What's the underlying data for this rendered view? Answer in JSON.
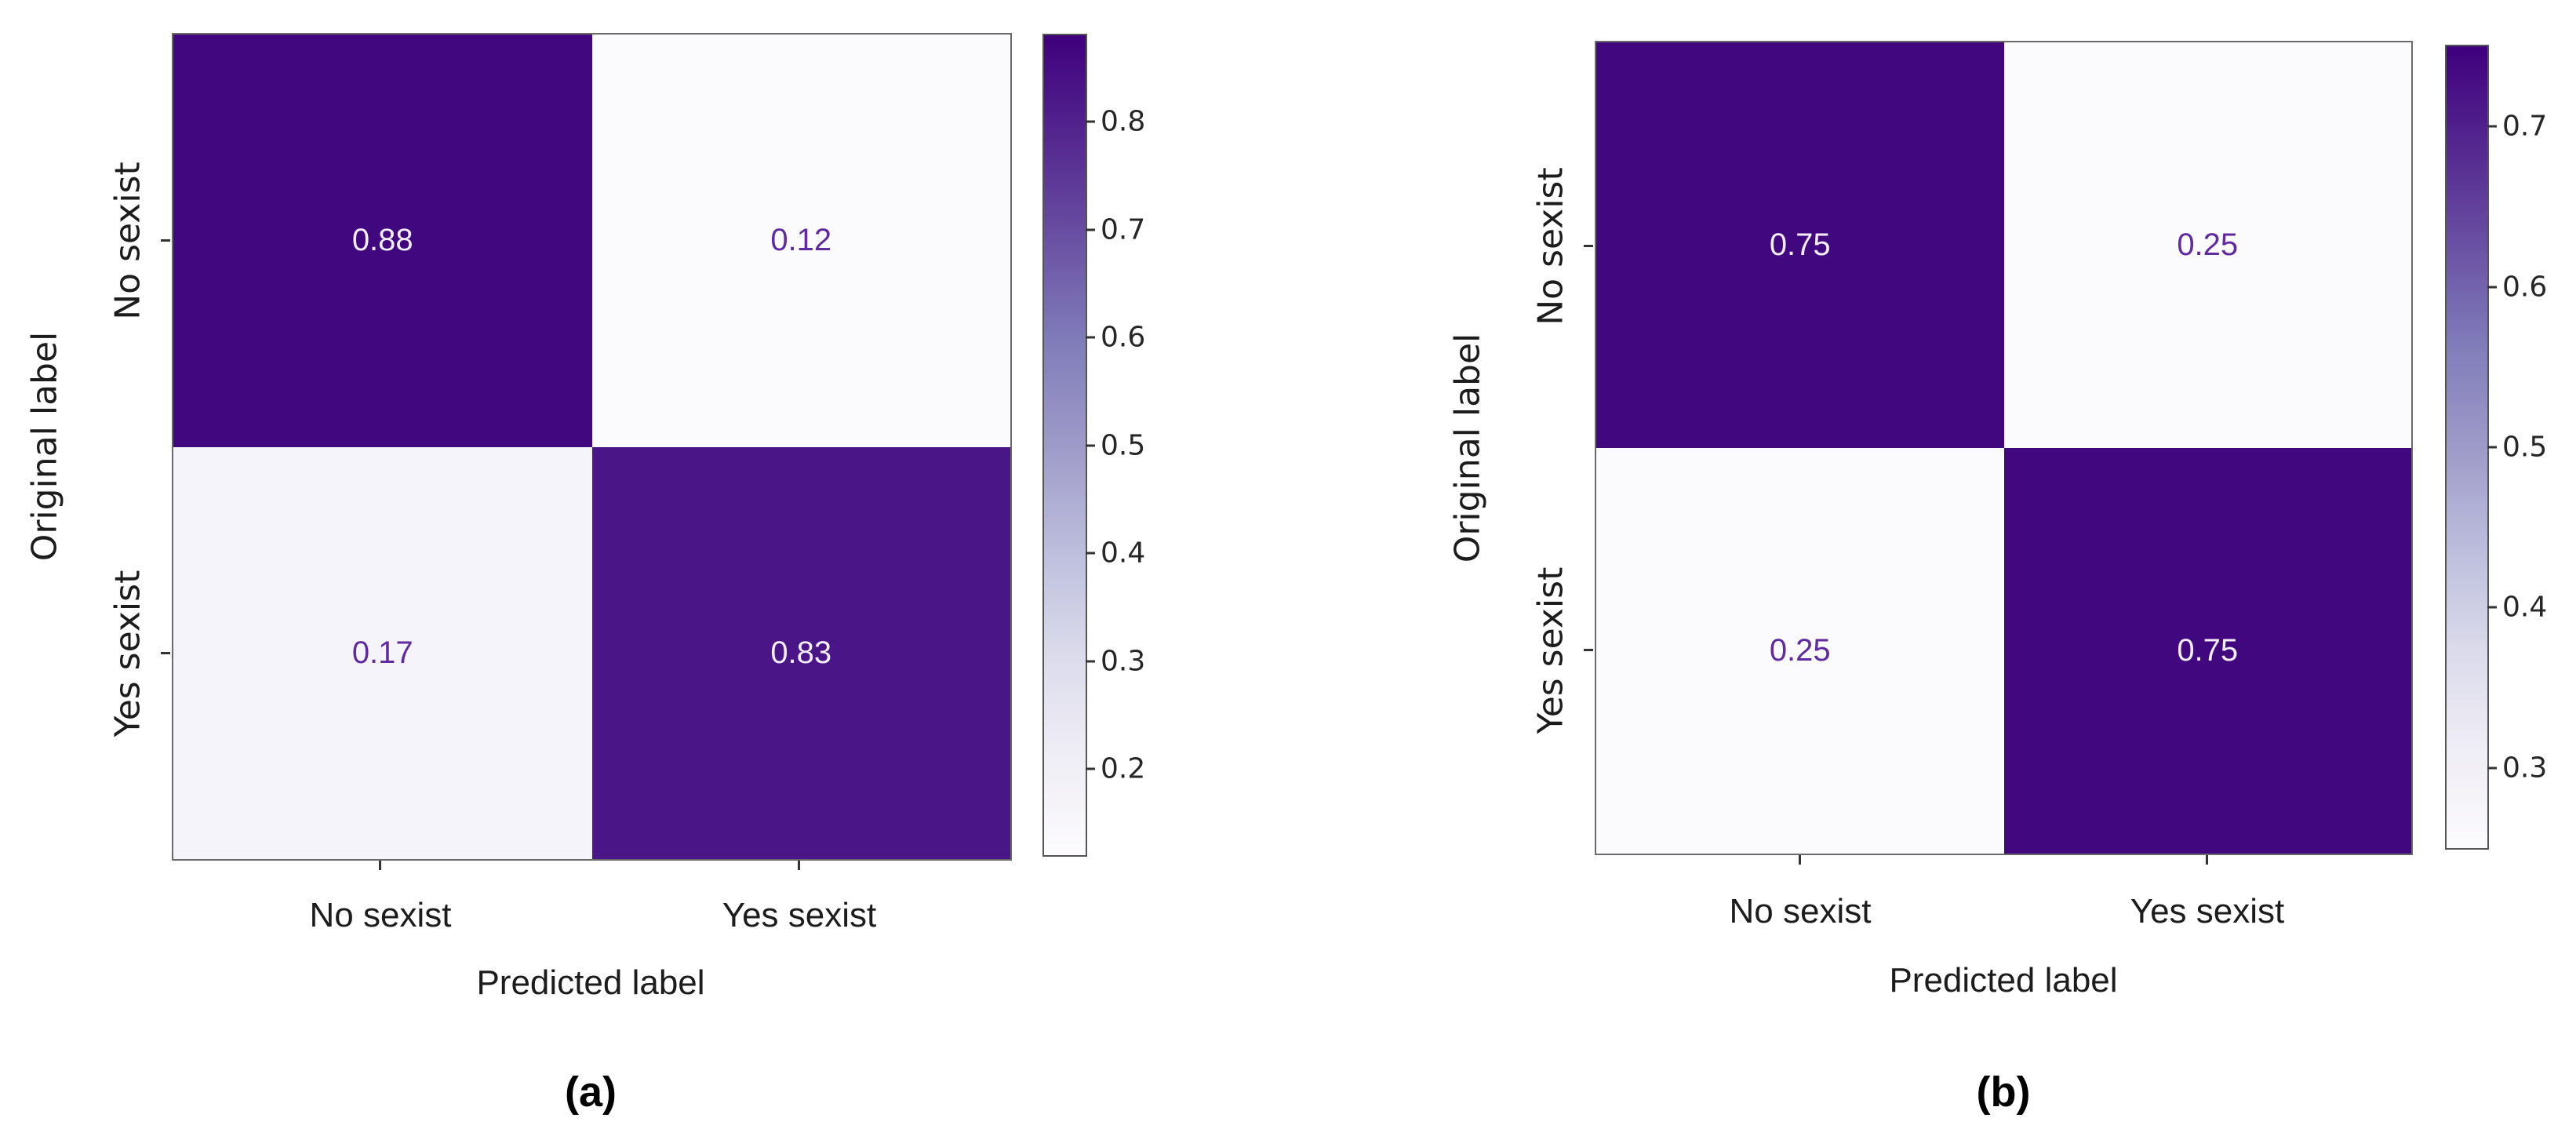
{
  "colors": {
    "colormap_name": "Purples",
    "colormap_stops_dark_to_light": [
      "#3f007d",
      "#54278f",
      "#6a51a3",
      "#807dba",
      "#9e9ac8",
      "#bcbddc",
      "#dadaeb",
      "#efedf5",
      "#fcfbfd"
    ],
    "annotation_on_dark": "#f2edf8",
    "annotation_on_light": "#5f2b9e",
    "spine": "#6a6a6a",
    "axis_text": "#1c1c1c"
  },
  "chart_data": [
    {
      "type": "heatmap",
      "caption": "(a)",
      "xlabel": "Predicted label",
      "ylabel": "Original label",
      "x_categories": [
        "No sexist",
        "Yes sexist"
      ],
      "y_categories": [
        "No sexist",
        "Yes sexist"
      ],
      "values": [
        [
          0.88,
          0.12
        ],
        [
          0.17,
          0.83
        ]
      ],
      "colormap": "Purples",
      "colorbar_range": [
        0.12,
        0.88
      ],
      "colorbar_ticks": [
        0.8,
        0.7,
        0.6,
        0.5,
        0.4,
        0.3,
        0.2
      ],
      "colorbar_position": "right",
      "grid": false,
      "cells": [
        {
          "value": "0.88",
          "bg": "#41077e",
          "fg": "#f2edf8"
        },
        {
          "value": "0.12",
          "bg": "#fbfafd",
          "fg": "#5f2b9e"
        },
        {
          "value": "0.17",
          "bg": "#f5f4fa",
          "fg": "#5f2b9e"
        },
        {
          "value": "0.83",
          "bg": "#4a1586",
          "fg": "#f2edf8"
        }
      ]
    },
    {
      "type": "heatmap",
      "caption": "(b)",
      "xlabel": "Predicted label",
      "ylabel": "Original label",
      "x_categories": [
        "No sexist",
        "Yes sexist"
      ],
      "y_categories": [
        "No sexist",
        "Yes sexist"
      ],
      "values": [
        [
          0.75,
          0.25
        ],
        [
          0.25,
          0.75
        ]
      ],
      "colormap": "Purples",
      "colorbar_range": [
        0.25,
        0.75
      ],
      "colorbar_ticks": [
        0.7,
        0.6,
        0.5,
        0.4,
        0.3
      ],
      "colorbar_position": "right",
      "grid": false,
      "cells": [
        {
          "value": "0.75",
          "bg": "#41077e",
          "fg": "#f2edf8"
        },
        {
          "value": "0.25",
          "bg": "#fbfafd",
          "fg": "#5f2b9e"
        },
        {
          "value": "0.25",
          "bg": "#fbfafd",
          "fg": "#5f2b9e"
        },
        {
          "value": "0.75",
          "bg": "#41077e",
          "fg": "#f2edf8"
        }
      ]
    }
  ]
}
